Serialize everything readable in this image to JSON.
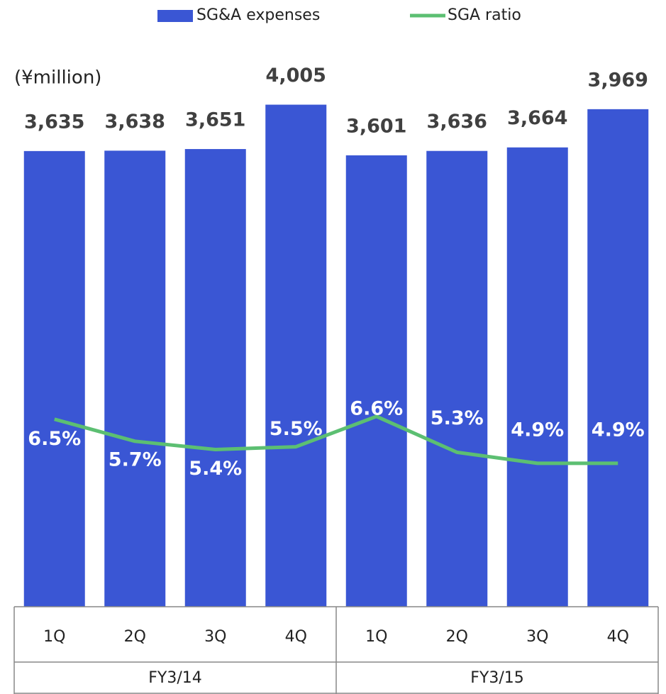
{
  "chart_data": {
    "type": "bar",
    "unit_label": "(¥million)",
    "categories": [
      "1Q",
      "2Q",
      "3Q",
      "4Q",
      "1Q",
      "2Q",
      "3Q",
      "4Q"
    ],
    "group_labels": [
      "FY3/14",
      "FY3/15"
    ],
    "series": [
      {
        "name": "SG&A expenses",
        "type": "bar",
        "color": "#3a56d4",
        "values": [
          3635,
          3638,
          3651,
          4005,
          3601,
          3636,
          3664,
          3969
        ],
        "value_labels": [
          "3,635",
          "3,638",
          "3,651",
          "4,005",
          "3,601",
          "3,636",
          "3,664",
          "3,969"
        ]
      },
      {
        "name": "SGA ratio",
        "type": "line",
        "axis": "y2",
        "color": "#5cbf72",
        "values": [
          6.5,
          5.7,
          5.4,
          5.5,
          6.6,
          5.3,
          4.9,
          4.9
        ],
        "value_labels": [
          "6.5%",
          "5.7%",
          "5.4%",
          "5.5%",
          "6.6%",
          "5.3%",
          "4.9%",
          "4.9%"
        ]
      }
    ],
    "ylim": [
      0,
      4840
    ],
    "y2lim": [
      -0.3,
      21.7
    ],
    "legend": "top"
  }
}
